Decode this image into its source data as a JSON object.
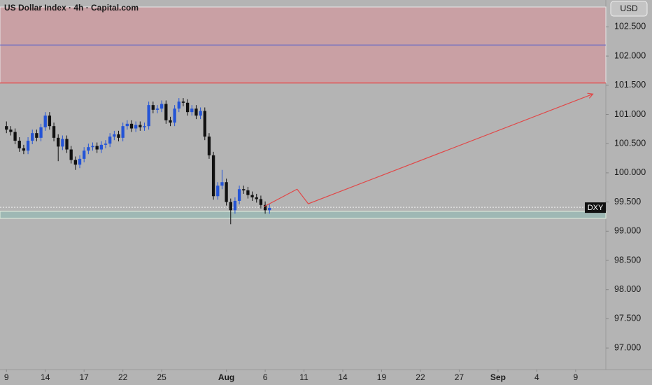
{
  "chart_data": {
    "type": "candlestick",
    "title": "US Dollar Index · 4h · Capital.com",
    "currency": "USD",
    "symbol": "DXY",
    "up_color": "#2454d6",
    "down_color": "#111111",
    "open": [
      100.8,
      100.74,
      100.7,
      100.55,
      100.42,
      100.38,
      100.55,
      100.68,
      100.6,
      100.78,
      100.98,
      100.8,
      100.6,
      100.45,
      100.58,
      100.4,
      100.22,
      100.14,
      100.24,
      100.38,
      100.44,
      100.46,
      100.4,
      100.48,
      100.5,
      100.62,
      100.66,
      100.6,
      100.8,
      100.84,
      100.76,
      100.82,
      100.78,
      100.8,
      101.16,
      101.08,
      101.1,
      101.18,
      100.9,
      100.86,
      101.1,
      101.22,
      101.2,
      101.04,
      101.1,
      100.98,
      101.06,
      100.62,
      100.3,
      99.6,
      99.78,
      99.84,
      99.5,
      99.36,
      99.52,
      99.72,
      99.7,
      99.62,
      99.58,
      99.55,
      99.45,
      99.36
    ],
    "high": [
      100.88,
      100.8,
      100.76,
      100.61,
      100.48,
      100.61,
      100.74,
      100.74,
      100.84,
      101.04,
      101.04,
      100.86,
      100.66,
      100.64,
      100.64,
      100.46,
      100.28,
      100.3,
      100.44,
      100.5,
      100.52,
      100.52,
      100.54,
      100.56,
      100.68,
      100.72,
      100.72,
      100.86,
      100.9,
      100.9,
      100.88,
      100.88,
      100.86,
      101.22,
      101.22,
      101.16,
      101.24,
      101.24,
      100.96,
      101.16,
      101.28,
      101.28,
      101.26,
      101.16,
      101.16,
      101.12,
      101.12,
      100.68,
      100.36,
      99.84,
      100.05,
      99.9,
      99.56,
      99.58,
      99.78,
      99.78,
      99.76,
      99.68,
      99.64,
      99.61,
      99.51,
      99.46
    ],
    "low": [
      100.68,
      100.64,
      100.49,
      100.36,
      100.32,
      100.32,
      100.49,
      100.54,
      100.54,
      100.72,
      100.74,
      100.54,
      100.2,
      100.39,
      100.34,
      100.16,
      100.05,
      100.08,
      100.18,
      100.32,
      100.38,
      100.34,
      100.34,
      100.42,
      100.44,
      100.56,
      100.54,
      100.54,
      100.74,
      100.7,
      100.7,
      100.72,
      100.72,
      100.74,
      101.02,
      101.02,
      101.04,
      100.84,
      100.8,
      100.8,
      101.04,
      101.14,
      100.98,
      100.98,
      100.92,
      100.92,
      100.56,
      100.24,
      99.54,
      99.54,
      99.72,
      99.44,
      99.12,
      99.3,
      99.46,
      99.64,
      99.56,
      99.52,
      99.49,
      99.39,
      99.3,
      99.3
    ],
    "close": [
      100.74,
      100.7,
      100.55,
      100.42,
      100.38,
      100.55,
      100.68,
      100.6,
      100.78,
      100.98,
      100.8,
      100.6,
      100.45,
      100.58,
      100.4,
      100.22,
      100.14,
      100.24,
      100.38,
      100.44,
      100.46,
      100.4,
      100.48,
      100.5,
      100.62,
      100.66,
      100.6,
      100.8,
      100.84,
      100.76,
      100.82,
      100.78,
      100.8,
      101.16,
      101.08,
      101.1,
      101.18,
      100.9,
      100.86,
      101.1,
      101.22,
      101.2,
      101.04,
      101.1,
      100.98,
      101.06,
      100.62,
      100.3,
      99.6,
      99.78,
      99.84,
      99.5,
      99.36,
      99.52,
      99.72,
      99.7,
      99.62,
      99.58,
      99.55,
      99.45,
      99.36,
      99.4
    ],
    "last_price": 99.41,
    "resistance_zone": [
      101.54,
      102.84
    ],
    "resistance_level": 102.19,
    "support_zone": [
      99.22,
      99.34
    ],
    "projection": {
      "x": [
        59.7,
        67.4,
        70,
        136
      ],
      "y": [
        99.42,
        99.72,
        99.47,
        101.35
      ]
    },
    "ylim": [
      96.63,
      102.96
    ],
    "yticks": [
      {
        "value": 97,
        "label": "97.000"
      },
      {
        "value": 97.5,
        "label": "97.500"
      },
      {
        "value": 98,
        "label": "98.000"
      },
      {
        "value": 98.5,
        "label": "98.500"
      },
      {
        "value": 99,
        "label": "99.000"
      },
      {
        "value": 99.5,
        "label": "99.500"
      },
      {
        "value": 100,
        "label": "100.000"
      },
      {
        "value": 100.5,
        "label": "100.500"
      },
      {
        "value": 101,
        "label": "101.000"
      },
      {
        "value": 101.5,
        "label": "101.500"
      },
      {
        "value": 102,
        "label": "102.000"
      },
      {
        "value": 102.5,
        "label": "102.500"
      }
    ],
    "xlim": [
      -1.5,
      139
    ],
    "xticks": [
      {
        "value": 0,
        "label": "9"
      },
      {
        "value": 9,
        "label": "14"
      },
      {
        "value": 18,
        "label": "17"
      },
      {
        "value": 27,
        "label": "22"
      },
      {
        "value": 36,
        "label": "25"
      },
      {
        "value": 51,
        "label": "Aug"
      },
      {
        "value": 60,
        "label": "6"
      },
      {
        "value": 69,
        "label": "11"
      },
      {
        "value": 78,
        "label": "14"
      },
      {
        "value": 87,
        "label": "19"
      },
      {
        "value": 96,
        "label": "22"
      },
      {
        "value": 105,
        "label": "27"
      },
      {
        "value": 114,
        "label": "Sep"
      },
      {
        "value": 123,
        "label": "4"
      },
      {
        "value": 132,
        "label": "9"
      }
    ]
  }
}
